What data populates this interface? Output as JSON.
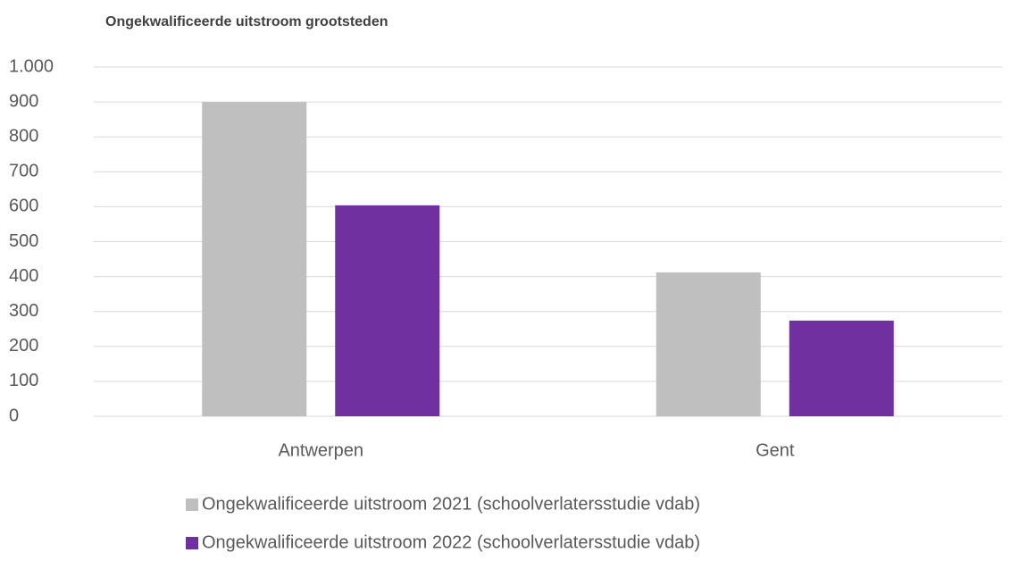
{
  "chart_data": {
    "type": "bar",
    "title": "Ongekwalificeerde uitstroom grootsteden",
    "categories": [
      "Antwerpen",
      "Gent"
    ],
    "series": [
      {
        "name": "Ongekwalificeerde uitstroom 2021 (schoolverlatersstudie vdab)",
        "color": "#bfbfbf",
        "values": [
          900,
          412
        ]
      },
      {
        "name": "Ongekwalificeerde uitstroom 2022 (schoolverlatersstudie vdab)",
        "color": "#7030a0",
        "values": [
          604,
          274
        ]
      }
    ],
    "ylim": [
      0,
      1000
    ],
    "yticks": [
      0,
      100,
      200,
      300,
      400,
      500,
      600,
      700,
      800,
      900,
      {
        "value": 1000,
        "label": "1.000"
      }
    ],
    "grid": true,
    "legend": "bottom"
  }
}
